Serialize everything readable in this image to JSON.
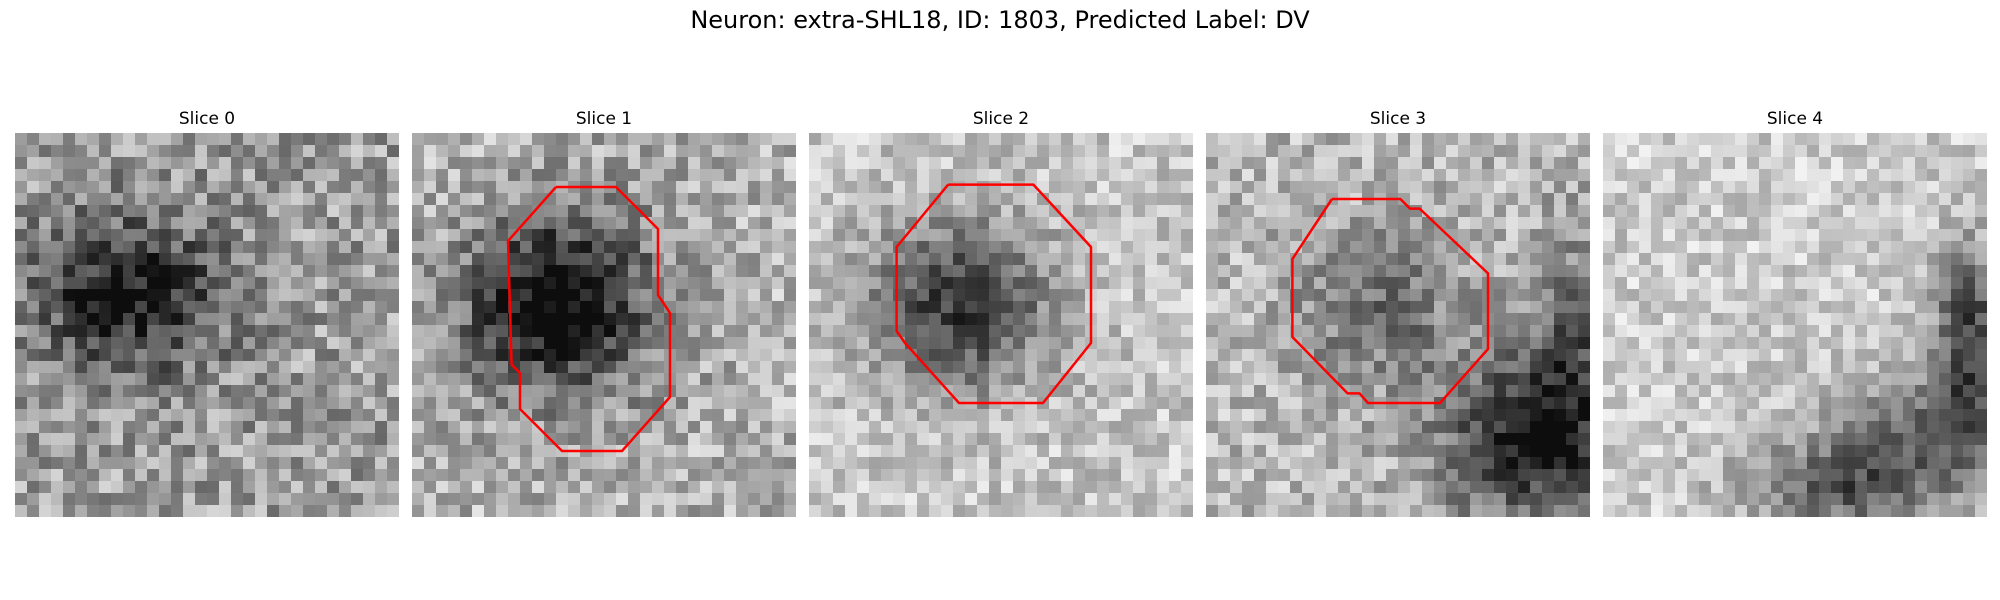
{
  "figure": {
    "title": "Neuron: extra-SHL18, ID: 1803, Predicted Label: DV"
  },
  "panels": [
    {
      "title": "Slice 0",
      "has_contour": false
    },
    {
      "title": "Slice 1",
      "has_contour": true
    },
    {
      "title": "Slice 2",
      "has_contour": true
    },
    {
      "title": "Slice 3",
      "has_contour": true
    },
    {
      "title": "Slice 4",
      "has_contour": false
    }
  ],
  "colors": {
    "contour": "#ff0000",
    "background": "#ffffff"
  }
}
